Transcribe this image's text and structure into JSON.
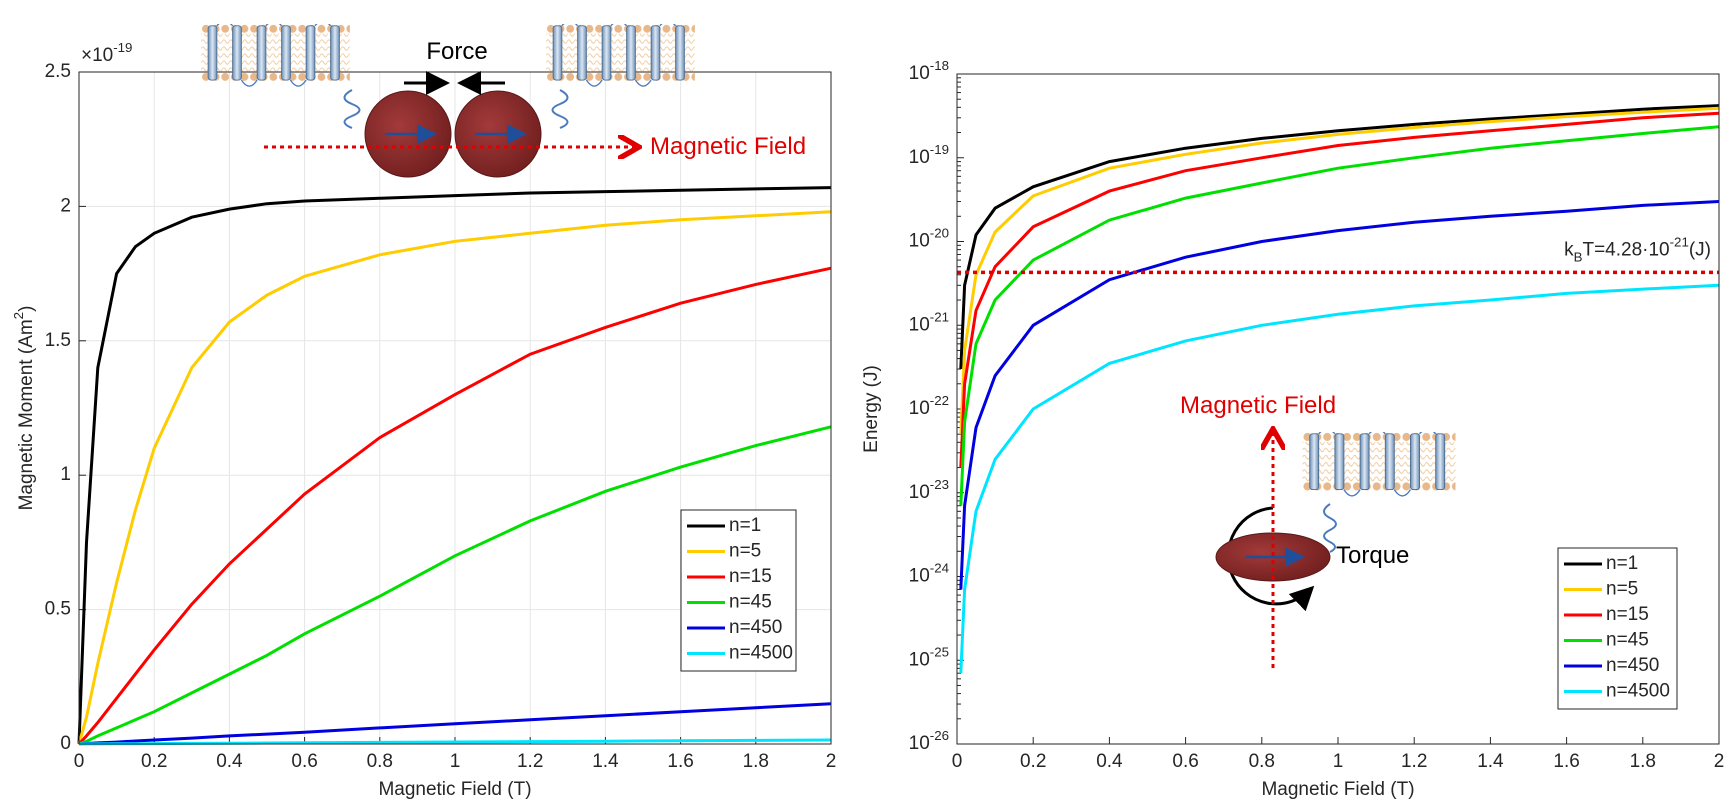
{
  "chart_data": [
    {
      "type": "line",
      "xlabel": "Magnetic Field (T)",
      "ylabel": "Magnetic Moment (Am^{2})",
      "y_multiplier": "×10^{-19}",
      "xlim": [
        0,
        2
      ],
      "xticks": [
        0,
        0.2,
        0.4,
        0.6,
        0.8,
        1,
        1.2,
        1.4,
        1.6,
        1.8,
        2
      ],
      "ylim": [
        0,
        2.5
      ],
      "yticks": [
        0,
        0.5,
        1,
        1.5,
        2,
        2.5
      ],
      "grid": true,
      "legend": "lower right",
      "x": [
        0,
        0.02,
        0.05,
        0.1,
        0.15,
        0.2,
        0.3,
        0.4,
        0.5,
        0.6,
        0.8,
        1.0,
        1.2,
        1.4,
        1.6,
        1.8,
        2.0
      ],
      "series": [
        {
          "name": "n=1",
          "color": "#000000",
          "values": [
            0,
            0.75,
            1.4,
            1.75,
            1.85,
            1.9,
            1.96,
            1.99,
            2.01,
            2.02,
            2.03,
            2.04,
            2.05,
            2.055,
            2.06,
            2.065,
            2.07
          ]
        },
        {
          "name": "n=5",
          "color": "#ffcc00",
          "values": [
            0,
            0.1,
            0.3,
            0.6,
            0.87,
            1.1,
            1.4,
            1.57,
            1.67,
            1.74,
            1.82,
            1.87,
            1.9,
            1.93,
            1.95,
            1.965,
            1.98
          ]
        },
        {
          "name": "n=15",
          "color": "#ff0000",
          "values": [
            0,
            0.03,
            0.08,
            0.17,
            0.26,
            0.35,
            0.52,
            0.67,
            0.8,
            0.93,
            1.14,
            1.3,
            1.45,
            1.55,
            1.64,
            1.71,
            1.77
          ]
        },
        {
          "name": "n=45",
          "color": "#00e000",
          "values": [
            0,
            0.01,
            0.03,
            0.06,
            0.09,
            0.12,
            0.19,
            0.26,
            0.33,
            0.41,
            0.55,
            0.7,
            0.83,
            0.94,
            1.03,
            1.11,
            1.18
          ]
        },
        {
          "name": "n=450",
          "color": "#0000e0",
          "values": [
            0,
            0.002,
            0.004,
            0.007,
            0.011,
            0.015,
            0.022,
            0.03,
            0.037,
            0.044,
            0.06,
            0.075,
            0.09,
            0.105,
            0.12,
            0.135,
            0.15
          ]
        },
        {
          "name": "n=4500",
          "color": "#00e5ff",
          "values": [
            0,
            0.0002,
            0.0004,
            0.0008,
            0.0011,
            0.0015,
            0.0022,
            0.003,
            0.0037,
            0.0045,
            0.006,
            0.0075,
            0.009,
            0.0105,
            0.012,
            0.0135,
            0.015
          ]
        }
      ],
      "annotations": {
        "force": "Force",
        "field": "Magnetic Field"
      }
    },
    {
      "type": "line",
      "xlabel": "Magnetic Field (T)",
      "ylabel": "Energy (J)",
      "log_y": true,
      "xlim": [
        0,
        2
      ],
      "xticks": [
        0,
        0.2,
        0.4,
        0.6,
        0.8,
        1,
        1.2,
        1.4,
        1.6,
        1.8,
        2
      ],
      "ylim": [
        1e-26,
        1e-18
      ],
      "yticks": [
        {
          "value": 1e-26,
          "label": "10^{-26}"
        },
        {
          "value": 1e-25,
          "label": "10^{-25}"
        },
        {
          "value": 1e-24,
          "label": "10^{-24}"
        },
        {
          "value": 1e-23,
          "label": "10^{-23}"
        },
        {
          "value": 1e-22,
          "label": "10^{-22}"
        },
        {
          "value": 1e-21,
          "label": "10^{-21}"
        },
        {
          "value": 1e-20,
          "label": "10^{-20}"
        },
        {
          "value": 1e-19,
          "label": "10^{-19}"
        },
        {
          "value": 1e-18,
          "label": "10^{-18}"
        }
      ],
      "grid": false,
      "legend": "lower right",
      "x": [
        0.01,
        0.02,
        0.05,
        0.1,
        0.2,
        0.4,
        0.6,
        0.8,
        1.0,
        1.2,
        1.4,
        1.6,
        1.8,
        2.0
      ],
      "series": [
        {
          "name": "n=1",
          "color": "#000000",
          "values": [
            3e-22,
            3e-21,
            1.2e-20,
            2.5e-20,
            4.5e-20,
            9e-20,
            1.3e-19,
            1.7e-19,
            2.1e-19,
            2.5e-19,
            2.9e-19,
            3.3e-19,
            3.8e-19,
            4.2e-19
          ]
        },
        {
          "name": "n=5",
          "color": "#ffcc00",
          "values": [
            5e-23,
            5e-22,
            4e-21,
            1.3e-20,
            3.5e-20,
            7.5e-20,
            1.1e-19,
            1.5e-19,
            1.9e-19,
            2.3e-19,
            2.7e-19,
            3.1e-19,
            3.5e-19,
            3.9e-19
          ]
        },
        {
          "name": "n=15",
          "color": "#ff0000",
          "values": [
            2e-23,
            2e-22,
            1.5e-21,
            5e-21,
            1.5e-20,
            4e-20,
            7e-20,
            1e-19,
            1.4e-19,
            1.75e-19,
            2.1e-19,
            2.5e-19,
            3e-19,
            3.4e-19
          ]
        },
        {
          "name": "n=45",
          "color": "#00e000",
          "values": [
            7e-24,
            7e-23,
            6e-22,
            2e-21,
            6e-21,
            1.8e-20,
            3.3e-20,
            5e-20,
            7.5e-20,
            1e-19,
            1.3e-19,
            1.6e-19,
            1.95e-19,
            2.35e-19
          ]
        },
        {
          "name": "n=450",
          "color": "#0000e0",
          "values": [
            7e-25,
            7e-24,
            6e-23,
            2.5e-22,
            1e-21,
            3.5e-21,
            6.5e-21,
            1e-20,
            1.35e-20,
            1.7e-20,
            2e-20,
            2.3e-20,
            2.7e-20,
            3e-20
          ]
        },
        {
          "name": "n=4500",
          "color": "#00e5ff",
          "values": [
            7e-26,
            7e-25,
            6e-24,
            2.5e-23,
            1e-22,
            3.5e-22,
            6.5e-22,
            1e-21,
            1.35e-21,
            1.7e-21,
            2e-21,
            2.4e-21,
            2.7e-21,
            3e-21
          ]
        }
      ],
      "threshold": {
        "value": 4.28e-21,
        "label": "k_{B}T=4.28·10^{-21}(J)",
        "color": "#e00000"
      },
      "annotations": {
        "field": "Magnetic Field",
        "torque": "Torque"
      }
    }
  ]
}
